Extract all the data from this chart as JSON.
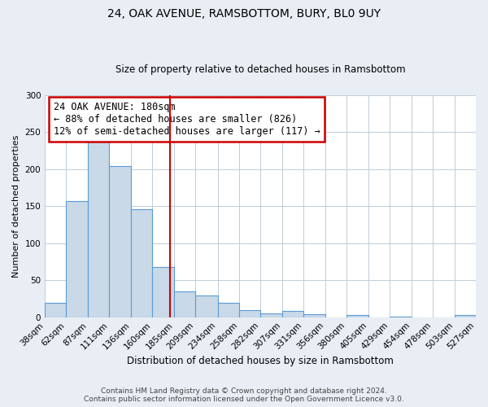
{
  "title": "24, OAK AVENUE, RAMSBOTTOM, BURY, BL0 9UY",
  "subtitle": "Size of property relative to detached houses in Ramsbottom",
  "xlabel": "Distribution of detached houses by size in Ramsbottom",
  "ylabel": "Number of detached properties",
  "footer_line1": "Contains HM Land Registry data © Crown copyright and database right 2024.",
  "footer_line2": "Contains public sector information licensed under the Open Government Licence v3.0.",
  "bin_edges": [
    38,
    62,
    87,
    111,
    136,
    160,
    185,
    209,
    234,
    258,
    282,
    307,
    331,
    356,
    380,
    405,
    429,
    454,
    478,
    503,
    527
  ],
  "bin_heights": [
    19,
    157,
    250,
    204,
    146,
    68,
    35,
    29,
    19,
    10,
    5,
    8,
    4,
    0,
    3,
    0,
    1,
    0,
    0,
    3
  ],
  "bar_facecolor": "#c9d9e8",
  "bar_edgecolor": "#5b9bd5",
  "property_size": 180,
  "vline_color": "#cc0000",
  "annotation_line1": "24 OAK AVENUE: 180sqm",
  "annotation_line2": "← 88% of detached houses are smaller (826)",
  "annotation_line3": "12% of semi-detached houses are larger (117) →",
  "annotation_boxcolor": "white",
  "annotation_edgecolor": "#cc0000",
  "ylim": [
    0,
    300
  ],
  "yticks": [
    0,
    50,
    100,
    150,
    200,
    250,
    300
  ],
  "background_color": "#e8eef4",
  "axes_background": "white",
  "grid_color": "#c0ccd8",
  "title_fontsize": 10,
  "subtitle_fontsize": 8.5,
  "ylabel_fontsize": 8,
  "xlabel_fontsize": 8.5,
  "tick_fontsize": 7.5,
  "footer_fontsize": 6.5
}
